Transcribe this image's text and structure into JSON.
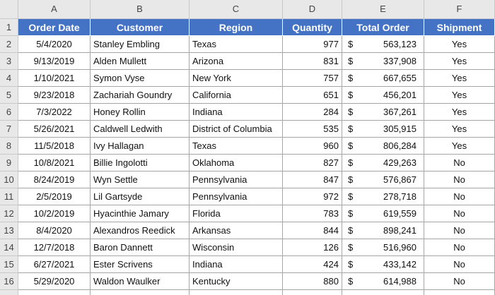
{
  "column_letters": [
    "A",
    "B",
    "C",
    "D",
    "E",
    "F"
  ],
  "row_numbers": [
    1,
    2,
    3,
    4,
    5,
    6,
    7,
    8,
    9,
    10,
    11,
    12,
    13,
    14,
    15,
    16
  ],
  "table": {
    "header": [
      "Order Date",
      "Customer",
      "Region",
      "Quantity",
      "Total Order",
      "Shipment"
    ],
    "rows": [
      [
        "5/4/2020",
        "Stanley Embling",
        "Texas",
        977,
        {
          "symbol": "$",
          "amount": "563,123"
        },
        "Yes"
      ],
      [
        "9/13/2019",
        "Alden Mullett",
        "Arizona",
        831,
        {
          "symbol": "$",
          "amount": "337,908"
        },
        "Yes"
      ],
      [
        "1/10/2021",
        "Symon Vyse",
        "New York",
        757,
        {
          "symbol": "$",
          "amount": "667,655"
        },
        "Yes"
      ],
      [
        "9/23/2018",
        "Zachariah Goundry",
        "California",
        651,
        {
          "symbol": "$",
          "amount": "456,201"
        },
        "Yes"
      ],
      [
        "7/3/2022",
        "Honey Rollin",
        "Indiana",
        284,
        {
          "symbol": "$",
          "amount": "367,261"
        },
        "Yes"
      ],
      [
        "5/26/2021",
        "Caldwell Ledwith",
        "District of Columbia",
        535,
        {
          "symbol": "$",
          "amount": "305,915"
        },
        "Yes"
      ],
      [
        "11/5/2018",
        "Ivy Hallagan",
        "Texas",
        960,
        {
          "symbol": "$",
          "amount": "806,284"
        },
        "Yes"
      ],
      [
        "10/8/2021",
        "Billie Ingolotti",
        "Oklahoma",
        827,
        {
          "symbol": "$",
          "amount": "429,263"
        },
        "No"
      ],
      [
        "8/24/2019",
        "Wyn Settle",
        "Pennsylvania",
        847,
        {
          "symbol": "$",
          "amount": "576,867"
        },
        "No"
      ],
      [
        "2/5/2019",
        "Lil Gartsyde",
        "Pennsylvania",
        972,
        {
          "symbol": "$",
          "amount": "278,718"
        },
        "No"
      ],
      [
        "10/2/2019",
        "Hyacinthie Jamary",
        "Florida",
        783,
        {
          "symbol": "$",
          "amount": "619,559"
        },
        "No"
      ],
      [
        "8/4/2020",
        "Alexandros Reedick",
        "Arkansas",
        844,
        {
          "symbol": "$",
          "amount": "898,241"
        },
        "No"
      ],
      [
        "12/7/2018",
        "Baron Dannett",
        "Wisconsin",
        126,
        {
          "symbol": "$",
          "amount": "516,960"
        },
        "No"
      ],
      [
        "6/27/2021",
        "Ester Scrivens",
        "Indiana",
        424,
        {
          "symbol": "$",
          "amount": "433,142"
        },
        "No"
      ],
      [
        "5/29/2020",
        "Waldon Waulker",
        "Kentucky",
        880,
        {
          "symbol": "$",
          "amount": "614,988"
        },
        "No"
      ]
    ]
  }
}
